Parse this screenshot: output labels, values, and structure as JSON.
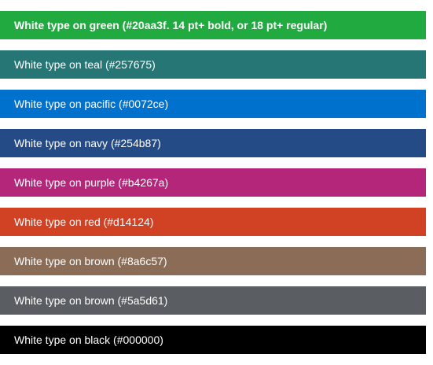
{
  "swatches": [
    {
      "label": "White type on green (#20aa3f. 14 pt+ bold, or 18 pt+ regular)",
      "color": "#20aa3f",
      "bold": true
    },
    {
      "label": "White type on teal (#257675)",
      "color": "#257675",
      "bold": false
    },
    {
      "label": "White type on pacific (#0072ce)",
      "color": "#0072ce",
      "bold": false
    },
    {
      "label": "White type on navy (#254b87)",
      "color": "#254b87",
      "bold": false
    },
    {
      "label": "White type on purple (#b4267a)",
      "color": "#b4267a",
      "bold": false
    },
    {
      "label": "White type on red (#d14124)",
      "color": "#d14124",
      "bold": false
    },
    {
      "label": "White type on brown (#8a6c57)",
      "color": "#8a6c57",
      "bold": false
    },
    {
      "label": "White type on brown (#5a5d61)",
      "color": "#5a5d61",
      "bold": false
    },
    {
      "label": "White type on black (#000000)",
      "color": "#000000",
      "bold": false
    }
  ]
}
